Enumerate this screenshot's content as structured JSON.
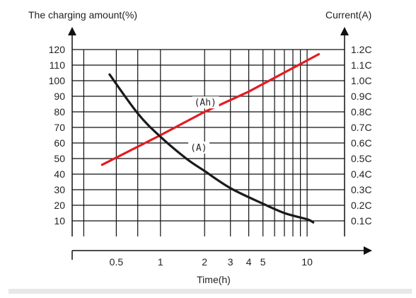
{
  "chart_data": {
    "type": "line",
    "title": "",
    "y_left_label": "The charging amount(%)",
    "y_right_label": "Current(A)",
    "xlabel": "Time(h)",
    "x_scale": "log",
    "xlim": [
      0.25,
      18
    ],
    "ylim": [
      0,
      130
    ],
    "x_ticks": [
      {
        "value": 0.5,
        "label": "0.5"
      },
      {
        "value": 1,
        "label": "1"
      },
      {
        "value": 2,
        "label": "2"
      },
      {
        "value": 3,
        "label": "3"
      },
      {
        "value": 4,
        "label": "4"
      },
      {
        "value": 5,
        "label": "5"
      },
      {
        "value": 10,
        "label": "10"
      }
    ],
    "x_gridlines": [
      0.3,
      0.5,
      0.7,
      1,
      2,
      3,
      4,
      5,
      6,
      7,
      8,
      9,
      10
    ],
    "y_left_ticks": [
      10,
      20,
      30,
      40,
      50,
      60,
      70,
      80,
      90,
      100,
      110,
      120
    ],
    "y_right_ticks": [
      {
        "value": 10,
        "label": "0.1C"
      },
      {
        "value": 20,
        "label": "0.2C"
      },
      {
        "value": 30,
        "label": "0.3C"
      },
      {
        "value": 40,
        "label": "0.4C"
      },
      {
        "value": 50,
        "label": "0.5C"
      },
      {
        "value": 60,
        "label": "0.6C"
      },
      {
        "value": 70,
        "label": "0.7C"
      },
      {
        "value": 80,
        "label": "0.8C"
      },
      {
        "value": 90,
        "label": "0.9C"
      },
      {
        "value": 100,
        "label": "1.0C"
      },
      {
        "value": 110,
        "label": "1.1C"
      },
      {
        "value": 120,
        "label": "1.2C"
      }
    ],
    "series": [
      {
        "name": "(Ah)",
        "color": "#e31b23",
        "x": [
          0.4,
          1,
          2,
          4,
          12
        ],
        "y": [
          46,
          65,
          80,
          93,
          117
        ]
      },
      {
        "name": "(A)",
        "color": "#1a1a1a",
        "x": [
          0.45,
          0.7,
          1,
          1.5,
          2,
          3,
          5,
          7,
          10,
          11
        ],
        "y": [
          104,
          79,
          64,
          50,
          42,
          31,
          21,
          15,
          11,
          9
        ]
      }
    ],
    "annotations": [
      {
        "text": "(Ah)",
        "x": 1.7,
        "y": 84
      },
      {
        "text": "(A)",
        "x": 1.6,
        "y": 55
      }
    ]
  }
}
